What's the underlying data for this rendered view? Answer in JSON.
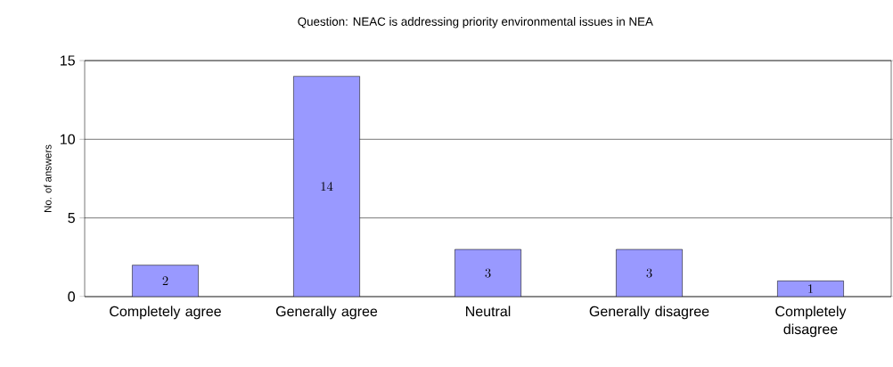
{
  "chart_data": {
    "type": "bar",
    "title": "Question: NEAC is addressing priority environmental issues in NEA",
    "ylabel": "No. of answers",
    "categories": [
      "Completely agree",
      "Generally agree",
      "Neutral",
      "Generally disagree",
      "Completely disagree"
    ],
    "values": [
      2,
      14,
      3,
      3,
      1
    ],
    "color": "#9999ff",
    "ylim": [
      0,
      15
    ],
    "yticks": [
      0,
      5,
      10,
      15
    ],
    "grid": "y",
    "data_labels": true
  }
}
